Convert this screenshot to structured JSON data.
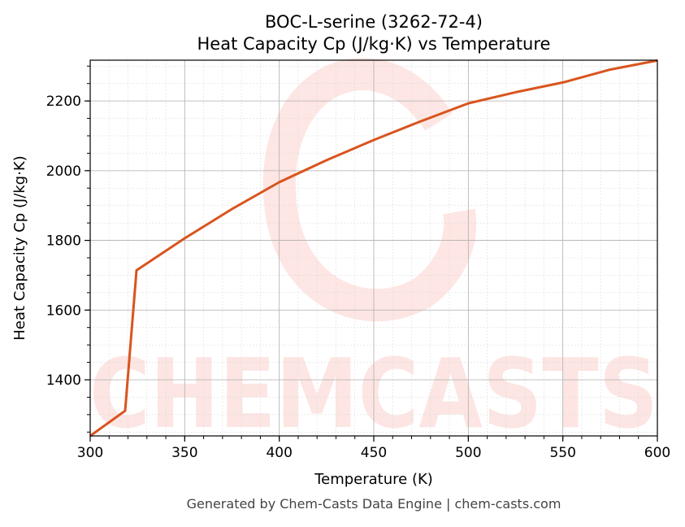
{
  "chart_data": {
    "type": "line",
    "title": "BOC-L-serine (3262-72-4)",
    "subtitle": "Heat Capacity Cp (J/kg·K) vs Temperature",
    "xlabel": "Temperature (K)",
    "ylabel": "Heat Capacity Cp (J/kg·K)",
    "xlim": [
      300,
      600
    ],
    "ylim": [
      1239,
      2317
    ],
    "x_ticks": [
      300,
      350,
      400,
      450,
      500,
      550,
      600
    ],
    "y_ticks": [
      1400,
      1600,
      1800,
      2000,
      2200
    ],
    "grid": true,
    "line_color": "#d9541e",
    "series": [
      {
        "x": [
          300,
          318.5,
          324.5,
          350,
          375,
          400,
          425,
          450,
          475,
          500,
          525,
          550,
          575,
          600
        ],
        "y": [
          1239,
          1311,
          1714,
          1806,
          1890,
          1967,
          2030,
          2088,
          2142,
          2193,
          2225,
          2253,
          2290,
          2316
        ]
      }
    ]
  },
  "watermark": "CHEMCASTS",
  "footer": "Generated by Chem-Casts Data Engine | chem-casts.com"
}
